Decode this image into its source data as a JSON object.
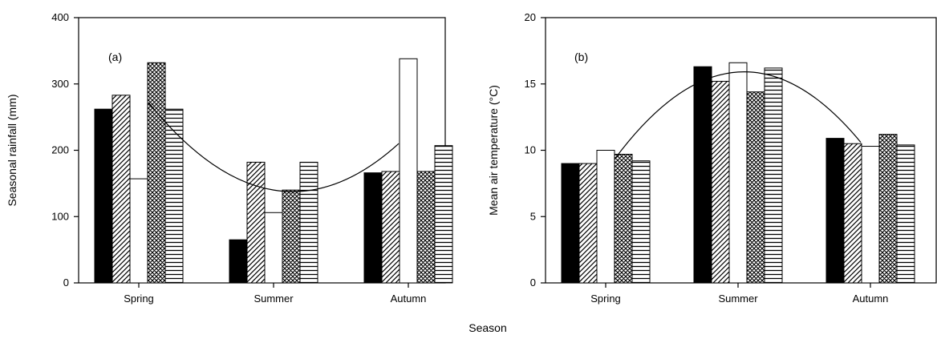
{
  "figure": {
    "shared_xlabel": "Season"
  },
  "chart_data": [
    {
      "type": "bar",
      "panel_label": "(a)",
      "ylabel": "Seasonal rainfall (mm)",
      "ylim": [
        0,
        400
      ],
      "yticks": [
        0,
        100,
        200,
        300,
        400
      ],
      "categories": [
        "Spring",
        "Summer",
        "Autumn"
      ],
      "series": [
        {
          "values": [
            262,
            65,
            166
          ],
          "pattern": "solid-black"
        },
        {
          "values": [
            283,
            182,
            168
          ],
          "pattern": "diagonal-hatch"
        },
        {
          "values": [
            157,
            106,
            338
          ],
          "pattern": "open-white"
        },
        {
          "values": [
            332,
            140,
            168
          ],
          "pattern": "cross-hatch"
        },
        {
          "values": [
            262,
            182,
            207
          ],
          "pattern": "horizontal-lines"
        }
      ],
      "trend_line": {
        "y": [
          272,
          140,
          210
        ]
      },
      "grid": false,
      "colors": {
        "bar_outline": "#000000",
        "fill_dark": "#000000",
        "fill_light": "#ffffff"
      }
    },
    {
      "type": "bar",
      "panel_label": "(b)",
      "ylabel": "Mean air temperature (°C)",
      "ylim": [
        0,
        20
      ],
      "yticks": [
        0,
        5,
        10,
        15,
        20
      ],
      "categories": [
        "Spring",
        "Summer",
        "Autumn"
      ],
      "series": [
        {
          "values": [
            9.0,
            16.3,
            10.9
          ],
          "pattern": "solid-black"
        },
        {
          "values": [
            9.0,
            15.2,
            10.5
          ],
          "pattern": "diagonal-hatch"
        },
        {
          "values": [
            10.0,
            16.6,
            10.3
          ],
          "pattern": "open-white"
        },
        {
          "values": [
            9.7,
            14.4,
            11.2
          ],
          "pattern": "cross-hatch"
        },
        {
          "values": [
            9.2,
            16.2,
            10.4
          ],
          "pattern": "horizontal-lines"
        }
      ],
      "trend_line": {
        "y": [
          9.4,
          15.9,
          10.6
        ]
      },
      "grid": false,
      "colors": {
        "bar_outline": "#000000",
        "fill_dark": "#000000",
        "fill_light": "#ffffff"
      }
    }
  ]
}
